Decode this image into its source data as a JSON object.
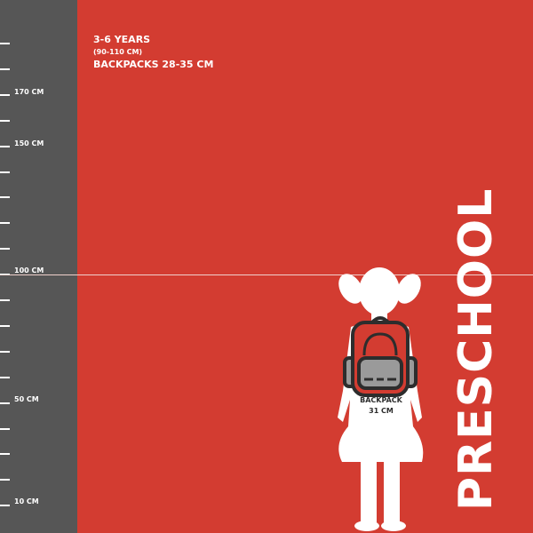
{
  "ruler": {
    "labels": {
      "l170": "170 CM",
      "l150": "150 CM",
      "l100": "100 CM",
      "l50": "50 CM",
      "l10": "10 CM"
    }
  },
  "info": {
    "age": "3-6 YEARS",
    "height": "(90-110 CM)",
    "backpacks": "BACKPACKS 28-35 CM"
  },
  "title": "PRESCHOOL",
  "backpack": {
    "label": "BACKPACK",
    "size": "31 CM"
  },
  "colors": {
    "background": "#d33c31",
    "ruler": "#565656",
    "figure": "#ffffff",
    "backpack_outline": "#2d2d2d",
    "backpack_pocket": "#9a9a9a"
  }
}
